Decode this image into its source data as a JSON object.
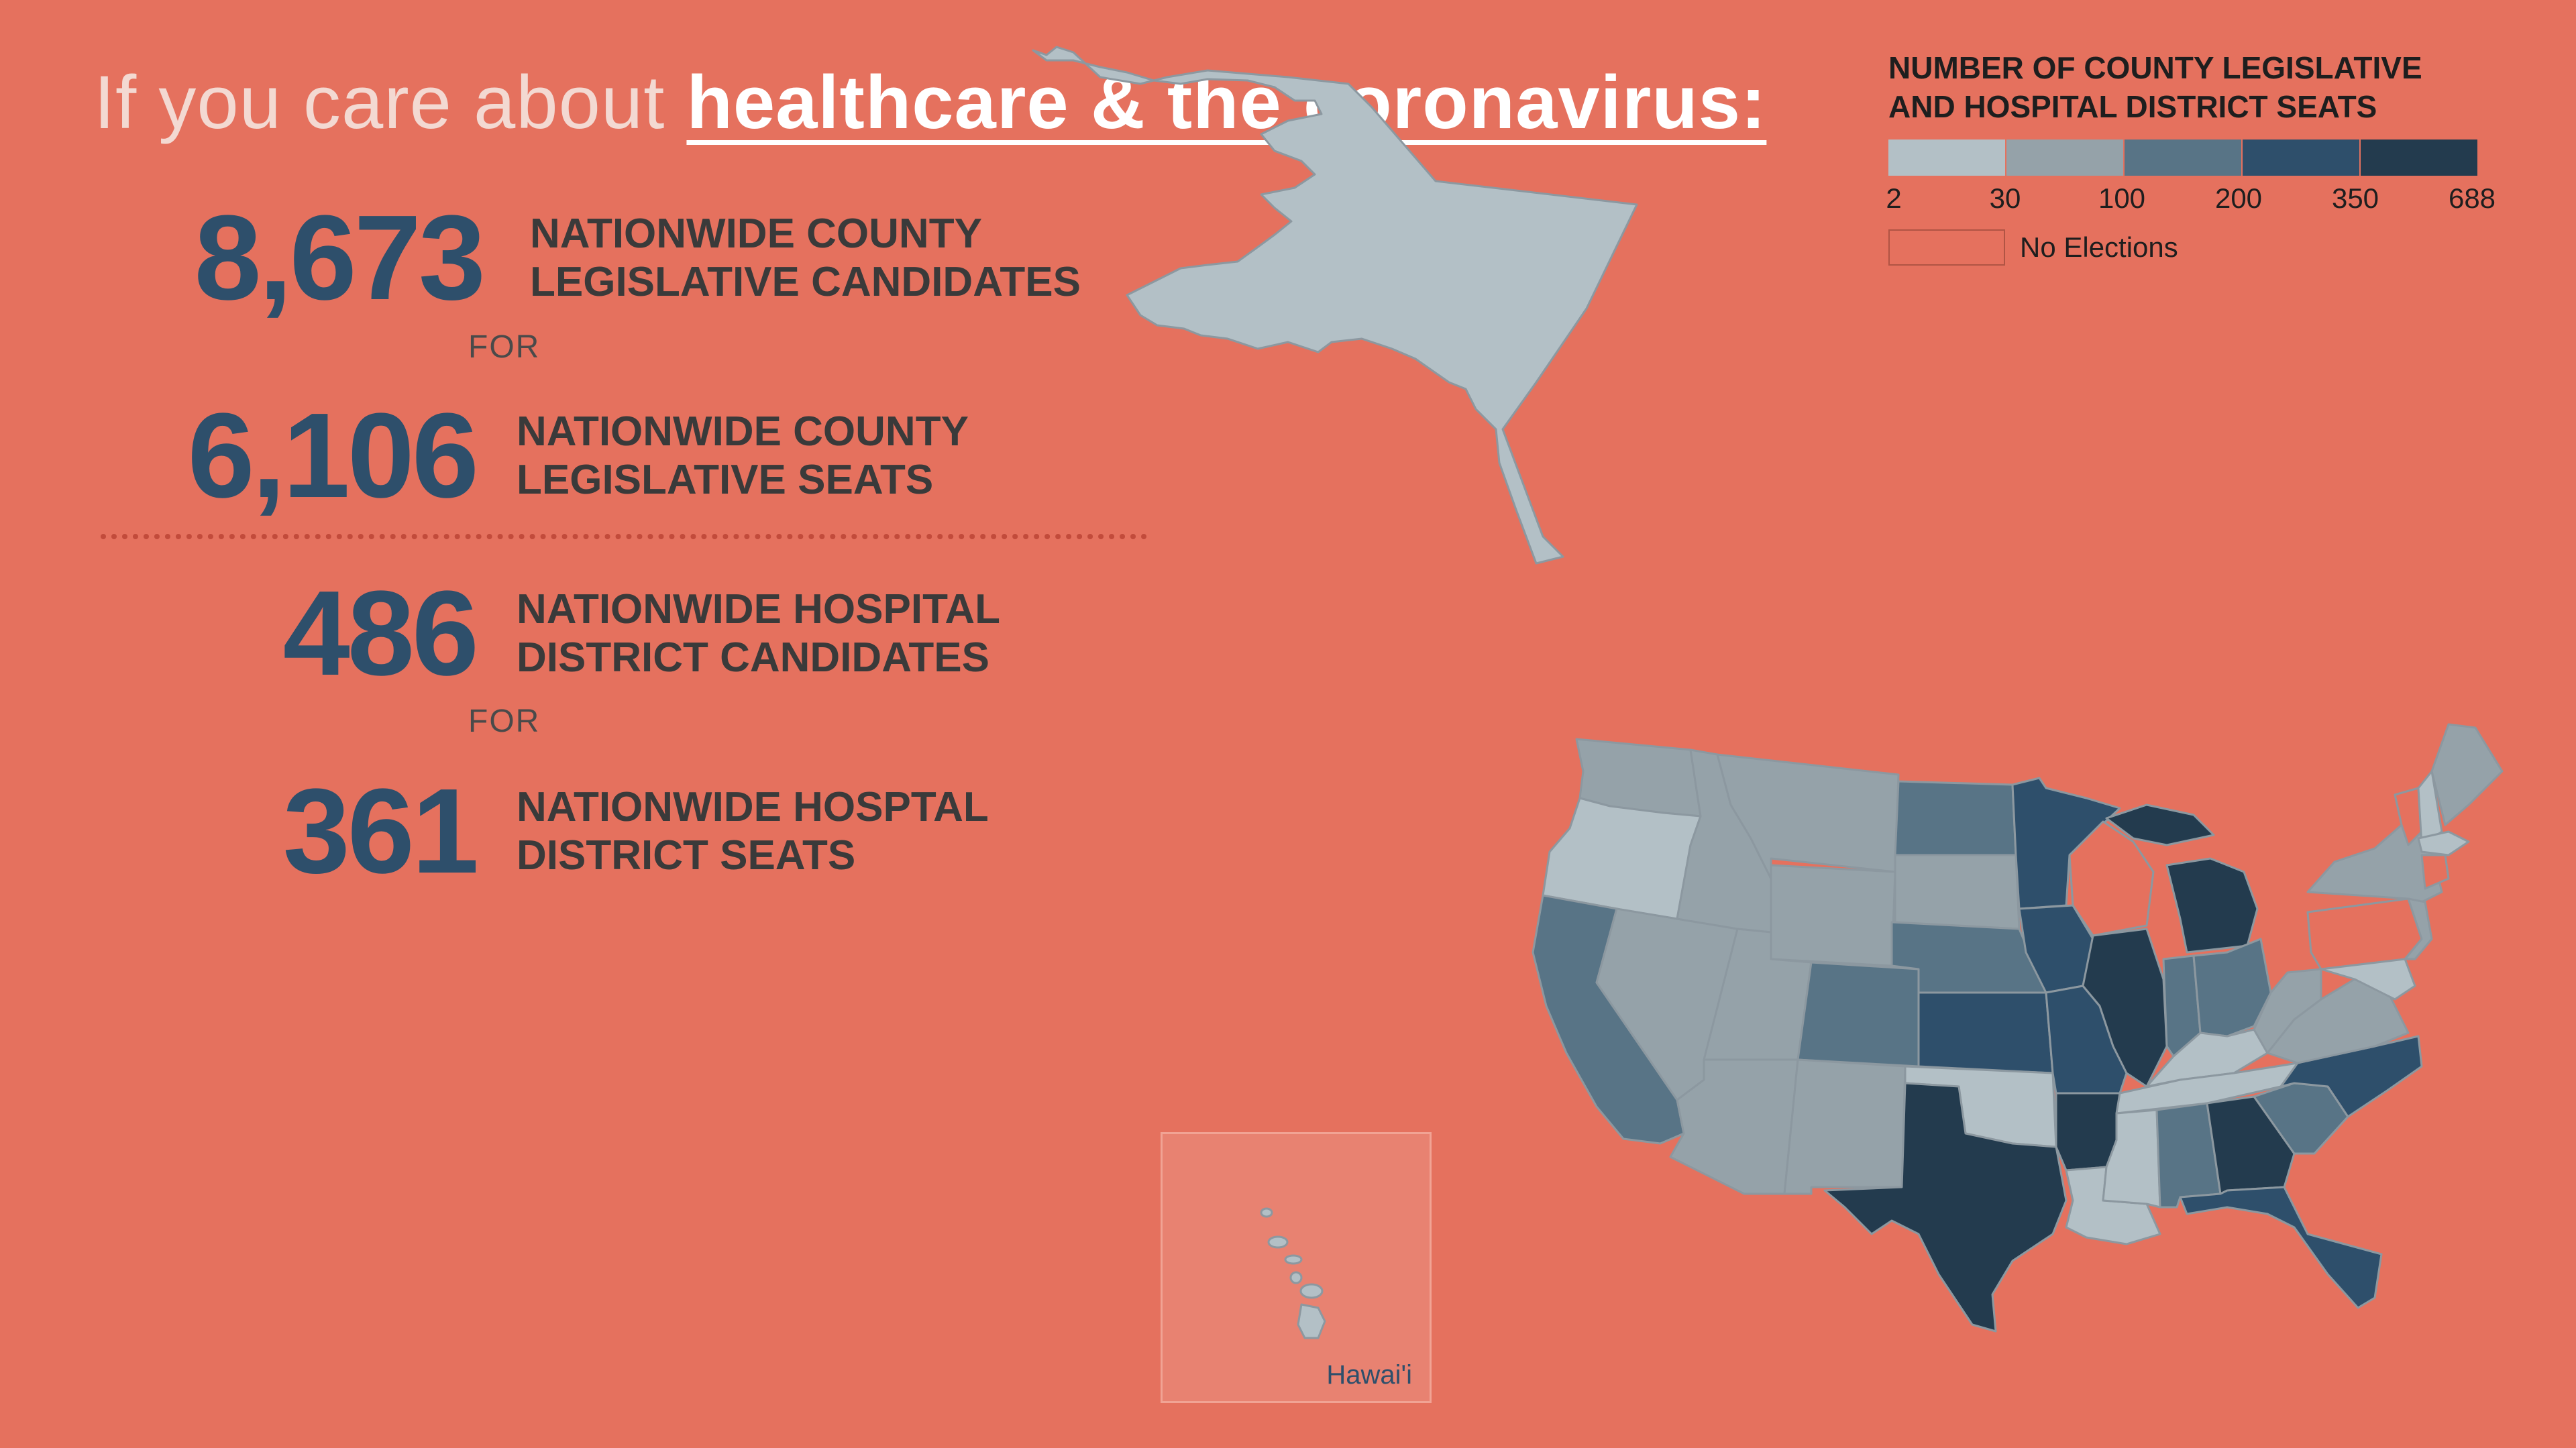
{
  "title": {
    "prefix": "If you care about ",
    "emphasis": "healthcare & the coronavirus:"
  },
  "stats": [
    {
      "value": "8,673",
      "label_line1": "NATIONWIDE COUNTY",
      "label_line2": "LEGISLATIVE CANDIDATES"
    },
    {
      "value": "6,106",
      "label_line1": "NATIONWIDE COUNTY",
      "label_line2": "LEGISLATIVE SEATS"
    },
    {
      "value": "486",
      "label_line1": "NATIONWIDE HOSPITAL",
      "label_line2": "DISTRICT CANDIDATES"
    },
    {
      "value": "361",
      "label_line1": "NATIONWIDE HOSPTAL",
      "label_line2": "DISTRICT SEATS"
    }
  ],
  "connector_word": "FOR",
  "legend": {
    "title_line1": "NUMBER OF COUNTY LEGISLATIVE",
    "title_line2": "AND HOSPITAL DISTRICT SEATS",
    "ticks": [
      "2",
      "30",
      "100",
      "200",
      "350",
      "688"
    ],
    "colors": [
      "#B3C0C6",
      "#95A2A9",
      "#587486",
      "#2E4F6B",
      "#233B4E"
    ],
    "no_elections_label": "No Elections",
    "no_elections_color": "#E5715E"
  },
  "inset_label": "Hawai'i",
  "colors": {
    "background": "#E5715E",
    "stat_number": "#2E4F6B",
    "title_text": "#F3D9D2",
    "title_emphasis": "#FFFFFF",
    "divider": "#C24B3B"
  },
  "map": {
    "states": [
      {
        "id": "AK",
        "level": 0
      },
      {
        "id": "WA",
        "level": 1
      },
      {
        "id": "OR",
        "level": 0
      },
      {
        "id": "CA",
        "level": 2
      },
      {
        "id": "NV",
        "level": 1
      },
      {
        "id": "ID",
        "level": 1
      },
      {
        "id": "MT",
        "level": 1
      },
      {
        "id": "WY",
        "level": 1
      },
      {
        "id": "UT",
        "level": 1
      },
      {
        "id": "AZ",
        "level": 1
      },
      {
        "id": "NM",
        "level": 1
      },
      {
        "id": "CO",
        "level": 2
      },
      {
        "id": "ND",
        "level": 2
      },
      {
        "id": "SD",
        "level": 1
      },
      {
        "id": "NE",
        "level": 2
      },
      {
        "id": "KS",
        "level": 3
      },
      {
        "id": "OK",
        "level": 0
      },
      {
        "id": "TX",
        "level": 4
      },
      {
        "id": "MN",
        "level": 3
      },
      {
        "id": "IA",
        "level": 3
      },
      {
        "id": "MO",
        "level": 3
      },
      {
        "id": "AR",
        "level": 4
      },
      {
        "id": "LA",
        "level": 0
      },
      {
        "id": "WI",
        "level": -1
      },
      {
        "id": "IL",
        "level": 4
      },
      {
        "id": "MI",
        "level": 4
      },
      {
        "id": "IN",
        "level": 2
      },
      {
        "id": "OH",
        "level": 2
      },
      {
        "id": "KY",
        "level": 0
      },
      {
        "id": "TN",
        "level": 0
      },
      {
        "id": "MS",
        "level": 0
      },
      {
        "id": "AL",
        "level": 2
      },
      {
        "id": "GA",
        "level": 4
      },
      {
        "id": "FL",
        "level": 3
      },
      {
        "id": "SC",
        "level": 2
      },
      {
        "id": "NC",
        "level": 3
      },
      {
        "id": "VA",
        "level": 1
      },
      {
        "id": "WV",
        "level": 1
      },
      {
        "id": "PA",
        "level": -1
      },
      {
        "id": "NY",
        "level": 1
      },
      {
        "id": "VT",
        "level": -1
      },
      {
        "id": "NH",
        "level": 0
      },
      {
        "id": "ME",
        "level": 1
      },
      {
        "id": "MA",
        "level": 0
      },
      {
        "id": "CT",
        "level": -1
      },
      {
        "id": "NJ",
        "level": 1
      },
      {
        "id": "MD",
        "level": 0
      },
      {
        "id": "HI",
        "level": 0
      }
    ]
  }
}
